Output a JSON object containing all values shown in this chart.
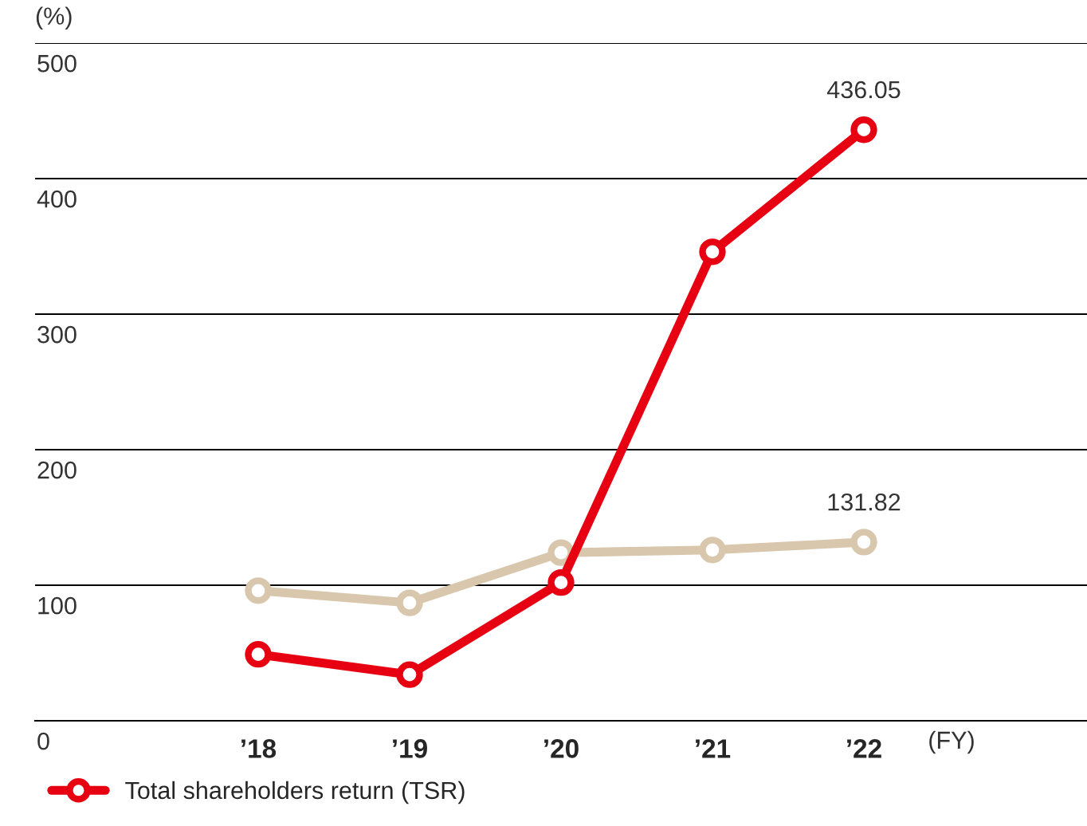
{
  "chart_data": {
    "type": "line",
    "ylabel": "(%)",
    "xlabel": "(FY)",
    "categories": [
      "’18",
      "’19",
      "’20",
      "’21",
      "’22"
    ],
    "series": [
      {
        "name": "Total shareholders return (TSR)",
        "color": "#e60012",
        "values": [
          49,
          34,
          102,
          346,
          436.05
        ],
        "value_labels": [
          null,
          null,
          null,
          null,
          "436.05"
        ]
      },
      {
        "color": "#d9c7ad",
        "values": [
          96,
          87,
          124,
          126,
          131.82
        ],
        "value_labels": [
          null,
          null,
          null,
          null,
          "131.82"
        ]
      }
    ],
    "ylim": [
      0,
      500
    ],
    "yticks": [
      0,
      100,
      200,
      300,
      400,
      500
    ],
    "grid": "y",
    "legend": "bottom left",
    "marker": "circle",
    "line_style": "solid"
  }
}
